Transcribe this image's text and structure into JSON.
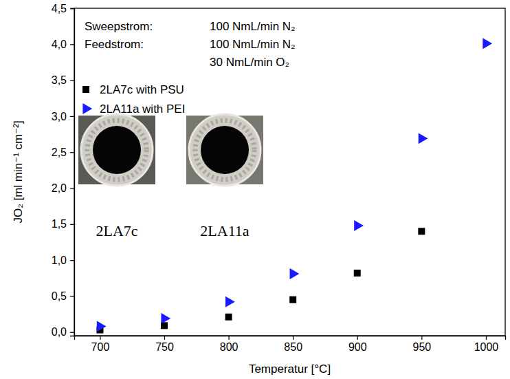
{
  "chart_data": {
    "type": "scatter",
    "x_label": "Temperatur [°C]",
    "y_label": "JO₂ [ml min⁻¹ cm⁻²]",
    "annotations": [
      "Sweepstrom:",
      "100 NmL/min N₂",
      "Feedstrom:",
      "100 NmL/min N₂",
      "30 NmL/min O₂",
      "2LA7c",
      "2LA11a"
    ],
    "series": [
      {
        "name": "2LA7c with PSU",
        "color": "#000000",
        "marker": "square",
        "x": [
          700,
          750,
          800,
          850,
          900,
          950
        ],
        "values": [
          0.03,
          0.09,
          0.21,
          0.45,
          0.82,
          1.4
        ]
      },
      {
        "name": "2LA11a with PEI",
        "color": "#1a1aff",
        "marker": "triangle-right",
        "x": [
          700,
          750,
          800,
          850,
          900,
          950,
          1000
        ],
        "values": [
          0.08,
          0.19,
          0.42,
          0.81,
          1.48,
          2.69,
          4.01
        ]
      }
    ],
    "xlim": [
      680,
      1015
    ],
    "xticks": [
      700,
      750,
      800,
      850,
      900,
      950,
      1000
    ],
    "ylim": [
      -0.05,
      4.5
    ],
    "yticks": [
      {
        "value": 0,
        "label": "0,0"
      },
      {
        "value": 0.5,
        "label": "0,5"
      },
      {
        "value": 1,
        "label": "1,0"
      },
      {
        "value": 1.5,
        "label": "1,5"
      },
      {
        "value": 2,
        "label": "2,0"
      },
      {
        "value": 2.5,
        "label": "2,5"
      },
      {
        "value": 3,
        "label": "3,0"
      },
      {
        "value": 3.5,
        "label": "3,5"
      },
      {
        "value": 4,
        "label": "4,0"
      },
      {
        "value": 4.5,
        "label": "4,5"
      }
    ],
    "legend": "top left",
    "grid": false
  }
}
